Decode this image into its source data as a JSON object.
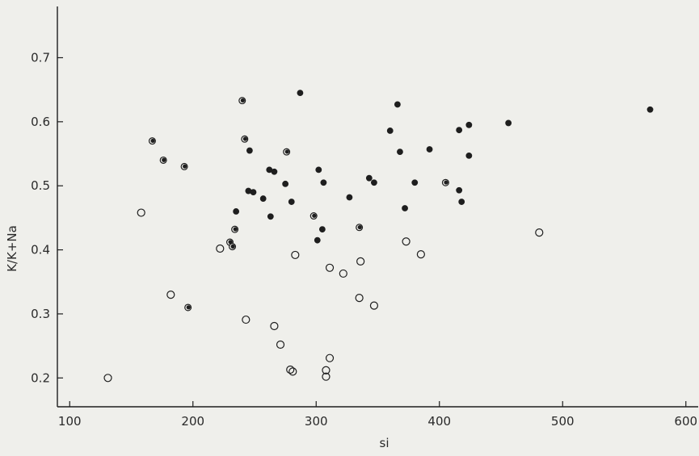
{
  "chart_data": {
    "type": "scatter",
    "title": "",
    "xlabel": "si",
    "ylabel": "K/K+Na",
    "xlim": [
      90,
      610
    ],
    "ylim": [
      0.155,
      0.78
    ],
    "x_ticks": [
      100,
      200,
      300,
      400,
      500,
      600
    ],
    "y_ticks": [
      0.2,
      0.3,
      0.4,
      0.5,
      0.6,
      0.7
    ],
    "x_tick_labels": [
      "100",
      "200",
      "300",
      "400",
      "500",
      "600"
    ],
    "y_tick_labels": [
      "0.2",
      "0.3",
      "0.4",
      "0.5",
      "0.6",
      "0.7"
    ],
    "grid": false,
    "legend": "none",
    "colors": {
      "ink": "#1e1e1e",
      "background": "#efefeb"
    },
    "series": [
      {
        "marker": "filled-circle",
        "points": [
          [
            287,
            0.645
          ],
          [
            366,
            0.627
          ],
          [
            571,
            0.619
          ],
          [
            456,
            0.598
          ],
          [
            424,
            0.595
          ],
          [
            360,
            0.586
          ],
          [
            416,
            0.587
          ],
          [
            392,
            0.557
          ],
          [
            368,
            0.553
          ],
          [
            246,
            0.555
          ],
          [
            424,
            0.547
          ],
          [
            302,
            0.525
          ],
          [
            262,
            0.525
          ],
          [
            266,
            0.522
          ],
          [
            343,
            0.512
          ],
          [
            306,
            0.505
          ],
          [
            347,
            0.505
          ],
          [
            380,
            0.505
          ],
          [
            275,
            0.503
          ],
          [
            416,
            0.493
          ],
          [
            245,
            0.492
          ],
          [
            249,
            0.49
          ],
          [
            418,
            0.475
          ],
          [
            327,
            0.482
          ],
          [
            257,
            0.48
          ],
          [
            280,
            0.475
          ],
          [
            372,
            0.465
          ],
          [
            235,
            0.46
          ],
          [
            263,
            0.452
          ],
          [
            305,
            0.432
          ],
          [
            301,
            0.415
          ]
        ]
      },
      {
        "marker": "half-filled-circle",
        "points": [
          [
            240,
            0.633
          ],
          [
            242,
            0.573
          ],
          [
            167,
            0.57
          ],
          [
            176,
            0.54
          ],
          [
            193,
            0.53
          ],
          [
            276,
            0.553
          ],
          [
            405,
            0.505
          ],
          [
            298,
            0.453
          ],
          [
            335,
            0.435
          ],
          [
            234,
            0.432
          ],
          [
            230,
            0.412
          ],
          [
            232,
            0.405
          ],
          [
            196,
            0.31
          ]
        ]
      },
      {
        "marker": "open-circle",
        "points": [
          [
            158,
            0.458
          ],
          [
            481,
            0.427
          ],
          [
            373,
            0.413
          ],
          [
            222,
            0.402
          ],
          [
            283,
            0.392
          ],
          [
            385,
            0.393
          ],
          [
            336,
            0.382
          ],
          [
            311,
            0.372
          ],
          [
            322,
            0.363
          ],
          [
            182,
            0.33
          ],
          [
            335,
            0.325
          ],
          [
            347,
            0.313
          ],
          [
            243,
            0.291
          ],
          [
            266,
            0.281
          ],
          [
            271,
            0.252
          ],
          [
            311,
            0.231
          ],
          [
            279,
            0.213
          ],
          [
            281,
            0.21
          ],
          [
            308,
            0.212
          ],
          [
            308,
            0.202
          ],
          [
            131,
            0.2
          ]
        ]
      }
    ]
  }
}
